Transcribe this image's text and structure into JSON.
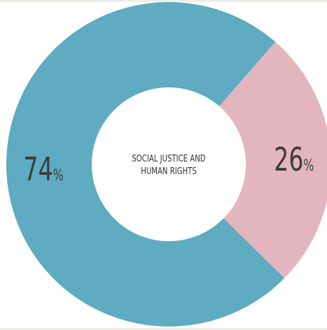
{
  "chart_data": {
    "type": "pie",
    "donut": true,
    "center_label": [
      "SOCIAL JUSTICE AND",
      "HUMAN RIGHTS"
    ],
    "slices": [
      {
        "label": "74%",
        "value": 74,
        "color": "#5fabc1"
      },
      {
        "label": "26%",
        "value": 26,
        "color": "#e3b6bf"
      }
    ]
  }
}
